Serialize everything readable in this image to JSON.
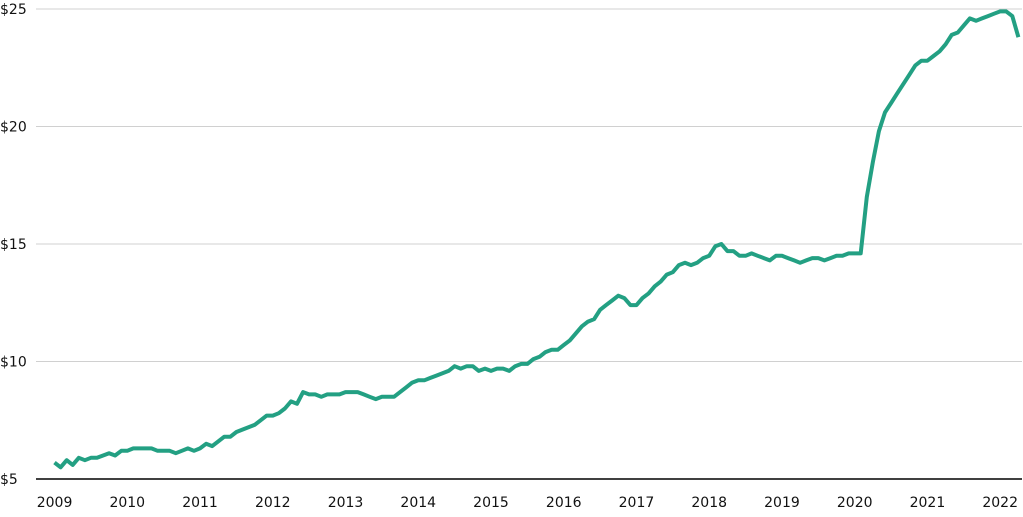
{
  "chart_data": {
    "type": "line",
    "x": [
      2009,
      2009.083,
      2009.167,
      2009.25,
      2009.333,
      2009.417,
      2009.5,
      2009.583,
      2009.667,
      2009.75,
      2009.833,
      2009.917,
      2010,
      2010.083,
      2010.167,
      2010.25,
      2010.333,
      2010.417,
      2010.5,
      2010.583,
      2010.667,
      2010.75,
      2010.833,
      2010.917,
      2011,
      2011.083,
      2011.167,
      2011.25,
      2011.333,
      2011.417,
      2011.5,
      2011.583,
      2011.667,
      2011.75,
      2011.833,
      2011.917,
      2012,
      2012.083,
      2012.167,
      2012.25,
      2012.333,
      2012.417,
      2012.5,
      2012.583,
      2012.667,
      2012.75,
      2012.833,
      2012.917,
      2013,
      2013.083,
      2013.167,
      2013.25,
      2013.333,
      2013.417,
      2013.5,
      2013.583,
      2013.667,
      2013.75,
      2013.833,
      2013.917,
      2014,
      2014.083,
      2014.167,
      2014.25,
      2014.333,
      2014.417,
      2014.5,
      2014.583,
      2014.667,
      2014.75,
      2014.833,
      2014.917,
      2015,
      2015.083,
      2015.167,
      2015.25,
      2015.333,
      2015.417,
      2015.5,
      2015.583,
      2015.667,
      2015.75,
      2015.833,
      2015.917,
      2016,
      2016.083,
      2016.167,
      2016.25,
      2016.333,
      2016.417,
      2016.5,
      2016.583,
      2016.667,
      2016.75,
      2016.833,
      2016.917,
      2017,
      2017.083,
      2017.167,
      2017.25,
      2017.333,
      2017.417,
      2017.5,
      2017.583,
      2017.667,
      2017.75,
      2017.833,
      2017.917,
      2018,
      2018.083,
      2018.167,
      2018.25,
      2018.333,
      2018.417,
      2018.5,
      2018.583,
      2018.667,
      2018.75,
      2018.833,
      2018.917,
      2019,
      2019.083,
      2019.167,
      2019.25,
      2019.333,
      2019.417,
      2019.5,
      2019.583,
      2019.667,
      2019.75,
      2019.833,
      2019.917,
      2020,
      2020.083,
      2020.167,
      2020.25,
      2020.333,
      2020.417,
      2020.5,
      2020.583,
      2020.667,
      2020.75,
      2020.833,
      2020.917,
      2021,
      2021.083,
      2021.167,
      2021.25,
      2021.333,
      2021.417,
      2021.5,
      2021.583,
      2021.667,
      2021.75,
      2021.833,
      2021.917,
      2022,
      2022.083,
      2022.167,
      2022.25
    ],
    "series": [
      {
        "color": "#23a083",
        "values": [
          5.7,
          5.5,
          5.8,
          5.6,
          5.9,
          5.8,
          5.9,
          5.9,
          6.0,
          6.1,
          6.0,
          6.2,
          6.2,
          6.3,
          6.3,
          6.3,
          6.3,
          6.2,
          6.2,
          6.2,
          6.1,
          6.2,
          6.3,
          6.2,
          6.3,
          6.5,
          6.4,
          6.6,
          6.8,
          6.8,
          7.0,
          7.1,
          7.2,
          7.3,
          7.5,
          7.7,
          7.7,
          7.8,
          8.0,
          8.3,
          8.2,
          8.7,
          8.6,
          8.6,
          8.5,
          8.6,
          8.6,
          8.6,
          8.7,
          8.7,
          8.7,
          8.6,
          8.5,
          8.4,
          8.5,
          8.5,
          8.5,
          8.7,
          8.9,
          9.1,
          9.2,
          9.2,
          9.3,
          9.4,
          9.5,
          9.6,
          9.8,
          9.7,
          9.8,
          9.8,
          9.6,
          9.7,
          9.6,
          9.7,
          9.7,
          9.6,
          9.8,
          9.9,
          9.9,
          10.1,
          10.2,
          10.4,
          10.5,
          10.5,
          10.7,
          10.9,
          11.2,
          11.5,
          11.7,
          11.8,
          12.2,
          12.4,
          12.6,
          12.8,
          12.7,
          12.4,
          12.4,
          12.7,
          12.9,
          13.2,
          13.4,
          13.7,
          13.8,
          14.1,
          14.2,
          14.1,
          14.2,
          14.4,
          14.5,
          14.9,
          15.0,
          14.7,
          14.7,
          14.5,
          14.5,
          14.6,
          14.5,
          14.4,
          14.3,
          14.5,
          14.5,
          14.4,
          14.3,
          14.2,
          14.3,
          14.4,
          14.4,
          14.3,
          14.4,
          14.5,
          14.5,
          14.6,
          14.6,
          14.6,
          17.0,
          18.5,
          19.8,
          20.6,
          21.0,
          21.4,
          21.8,
          22.2,
          22.6,
          22.8,
          22.8,
          23.0,
          23.2,
          23.5,
          23.9,
          24.0,
          24.3,
          24.6,
          24.5,
          24.6,
          24.7,
          24.8,
          24.9,
          24.9,
          24.7,
          23.8
        ]
      }
    ],
    "xlim": [
      2008.8,
      2022.3
    ],
    "xticks": [
      2009,
      2010,
      2011,
      2012,
      2013,
      2014,
      2015,
      2016,
      2017,
      2018,
      2019,
      2020,
      2021,
      2022
    ],
    "ylim": [
      5,
      25
    ],
    "yticks": [
      {
        "value": 5,
        "label": "$5"
      },
      {
        "value": 10,
        "label": "$10"
      },
      {
        "value": 15,
        "label": "$15"
      },
      {
        "value": 20,
        "label": "$20"
      },
      {
        "value": 25,
        "label": "$25"
      }
    ],
    "grid": true
  }
}
